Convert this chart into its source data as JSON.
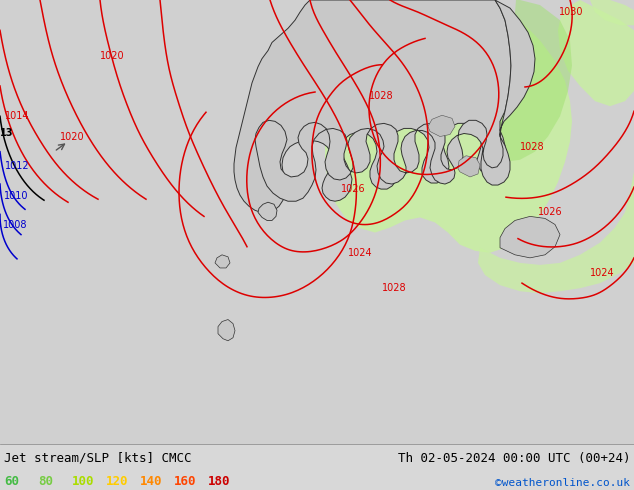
{
  "title_left": "Jet stream/SLP [kts] CMCC",
  "title_right": "Th 02-05-2024 00:00 UTC (00+24)",
  "copyright": "©weatheronline.co.uk",
  "legend_values": [
    "60",
    "80",
    "100",
    "120",
    "140",
    "160",
    "180"
  ],
  "legend_colors": [
    "#44bb44",
    "#44bb44",
    "#88cc00",
    "#ffcc00",
    "#ff8800",
    "#ff4400",
    "#cc0000"
  ],
  "background_color": "#d8d8d8",
  "fig_width": 6.34,
  "fig_height": 4.9,
  "dpi": 100,
  "title_fontsize": 9,
  "legend_fontsize": 9,
  "copyright_fontsize": 8,
  "copyright_color": "#0055cc",
  "green_light": "#c8f0a0",
  "green_medium": "#a0e070",
  "ocean_color": "#d0d0d0",
  "land_color": "#c8c8c8",
  "contour_color_red": "#dd0000",
  "contour_color_blue": "#0000cc",
  "contour_color_black": "#000000"
}
